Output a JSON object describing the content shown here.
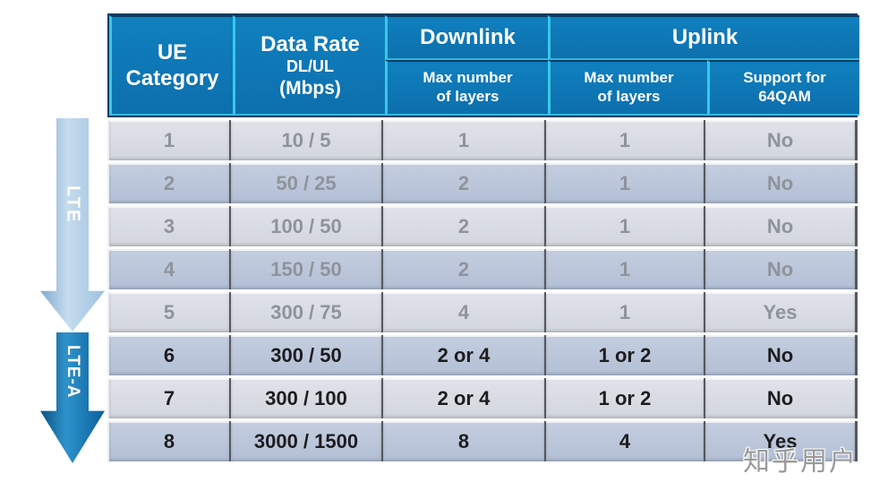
{
  "table": {
    "header": {
      "ue_line1": "UE",
      "ue_line2": "Category",
      "rate_line1": "Data Rate",
      "rate_line2": "DL/UL",
      "rate_line3": "(Mbps)",
      "downlink": "Downlink",
      "uplink": "Uplink",
      "max_layers_line1": "Max  number",
      "max_layers_line2": "of layers",
      "qam_line1": "Support for",
      "qam_line2": "64QAM"
    },
    "rows": [
      {
        "category": "1",
        "rate": "10 / 5",
        "dl_layers": "1",
        "ul_layers": "1",
        "qam64": "No",
        "era": "LTE"
      },
      {
        "category": "2",
        "rate": "50 / 25",
        "dl_layers": "2",
        "ul_layers": "1",
        "qam64": "No",
        "era": "LTE"
      },
      {
        "category": "3",
        "rate": "100 / 50",
        "dl_layers": "2",
        "ul_layers": "1",
        "qam64": "No",
        "era": "LTE"
      },
      {
        "category": "4",
        "rate": "150 / 50",
        "dl_layers": "2",
        "ul_layers": "1",
        "qam64": "No",
        "era": "LTE"
      },
      {
        "category": "5",
        "rate": "300 / 75",
        "dl_layers": "4",
        "ul_layers": "1",
        "qam64": "Yes",
        "era": "LTE"
      },
      {
        "category": "6",
        "rate": "300 / 50",
        "dl_layers": "2 or 4",
        "ul_layers": "1 or 2",
        "qam64": "No",
        "era": "LTE-A"
      },
      {
        "category": "7",
        "rate": "300 / 100",
        "dl_layers": "2 or 4",
        "ul_layers": "1 or 2",
        "qam64": "No",
        "era": "LTE-A"
      },
      {
        "category": "8",
        "rate": "3000 / 1500",
        "dl_layers": "8",
        "ul_layers": "4",
        "qam64": "Yes",
        "era": "LTE-A"
      }
    ]
  },
  "arrows": {
    "lte_label": "LTE",
    "ltea_label": "LTE-A"
  },
  "watermark": "知乎用户",
  "colors": {
    "header_blue": "#0E74B2",
    "header_border_cyan": "#38C8E8",
    "header_border_navy": "#0B3C60",
    "row_light": "#D7DAE1",
    "row_dark": "#B9C4D9",
    "row_text_gray": "#8F939B",
    "row_text_dark": "#1D1D1F",
    "lte_arrow": "#A9C8E3",
    "ltea_arrow": "#0D6FB0"
  }
}
